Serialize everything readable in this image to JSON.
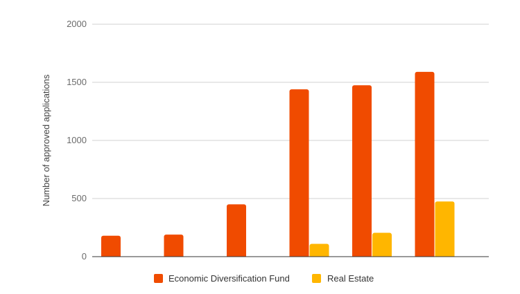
{
  "chart_data": {
    "type": "bar",
    "title": "",
    "xlabel": "",
    "ylabel": "Number of  approved applications",
    "ylim": [
      0,
      2000
    ],
    "yticks": [
      0,
      500,
      1000,
      1500,
      2000
    ],
    "grid": true,
    "legend_position": "bottom",
    "categories": [
      "",
      "",
      "",
      "",
      "",
      ""
    ],
    "series": [
      {
        "name": "Economic Diversification Fund",
        "color": "#f04b00",
        "values": [
          180,
          190,
          450,
          1440,
          1475,
          1590
        ]
      },
      {
        "name": "Real Estate",
        "color": "#ffb600",
        "values": [
          0,
          0,
          0,
          110,
          205,
          475
        ]
      }
    ]
  }
}
